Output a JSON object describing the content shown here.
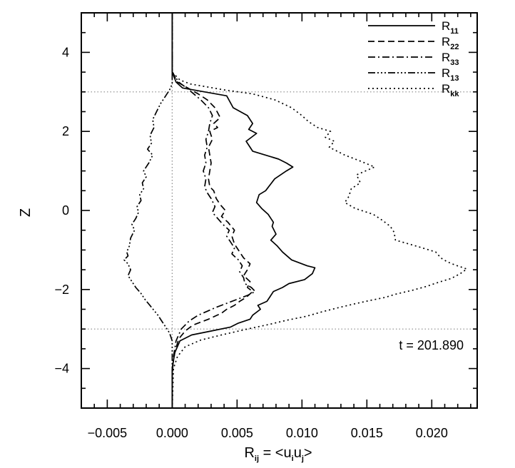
{
  "chart_data": {
    "type": "line",
    "title": "",
    "xlabel": "R_ij = <u_i u_j>",
    "xlabel_parts": {
      "main": "R",
      "sub": "ij",
      "eq": " = <u",
      "sub_i": "i",
      "mid": "u",
      "sub_j": "j",
      "close": ">"
    },
    "ylabel": "Z",
    "xlim": [
      -0.007,
      0.0235
    ],
    "ylim": [
      -5.0,
      5.0
    ],
    "x_ticks": [
      -0.005,
      0.0,
      0.005,
      0.01,
      0.015,
      0.02
    ],
    "x_tick_labels": [
      "−0.005",
      "0.000",
      "0.005",
      "0.010",
      "0.015",
      "0.020"
    ],
    "y_ticks": [
      -4,
      -2,
      0,
      2,
      4
    ],
    "y_tick_labels": [
      "−4",
      "−2",
      "0",
      "2",
      "4"
    ],
    "legend_position": "top-right",
    "grid": false,
    "reference_lines": {
      "horizontal": [
        3.0,
        -3.0
      ],
      "vertical": [
        0.0
      ],
      "style": "dotted",
      "color": "#888888"
    },
    "annotation": "t = 201.890",
    "series": [
      {
        "name": "R11",
        "label_main": "R",
        "label_sub": "11",
        "dash": "",
        "points": [
          [
            0.0,
            5.0
          ],
          [
            0.0,
            4.0
          ],
          [
            0.0,
            3.5
          ],
          [
            0.0003,
            3.25
          ],
          [
            0.0008,
            3.1
          ],
          [
            0.0025,
            3.0
          ],
          [
            0.0042,
            2.9
          ],
          [
            0.0047,
            2.6
          ],
          [
            0.0058,
            2.4
          ],
          [
            0.0062,
            2.2
          ],
          [
            0.0059,
            2.05
          ],
          [
            0.0065,
            1.95
          ],
          [
            0.0057,
            1.75
          ],
          [
            0.0062,
            1.5
          ],
          [
            0.0082,
            1.3
          ],
          [
            0.0088,
            1.2
          ],
          [
            0.0093,
            1.1
          ],
          [
            0.0088,
            1.0
          ],
          [
            0.0079,
            0.8
          ],
          [
            0.0072,
            0.5
          ],
          [
            0.0067,
            0.4
          ],
          [
            0.0065,
            0.2
          ],
          [
            0.0069,
            0.05
          ],
          [
            0.0074,
            -0.1
          ],
          [
            0.0078,
            -0.3
          ],
          [
            0.0077,
            -0.4
          ],
          [
            0.008,
            -0.6
          ],
          [
            0.0076,
            -0.75
          ],
          [
            0.0081,
            -0.9
          ],
          [
            0.0085,
            -1.05
          ],
          [
            0.0092,
            -1.25
          ],
          [
            0.0104,
            -1.4
          ],
          [
            0.011,
            -1.45
          ],
          [
            0.0108,
            -1.6
          ],
          [
            0.0102,
            -1.75
          ],
          [
            0.009,
            -1.85
          ],
          [
            0.0085,
            -1.95
          ],
          [
            0.0078,
            -2.05
          ],
          [
            0.0075,
            -2.2
          ],
          [
            0.0073,
            -2.3
          ],
          [
            0.0066,
            -2.4
          ],
          [
            0.0068,
            -2.5
          ],
          [
            0.0062,
            -2.65
          ],
          [
            0.006,
            -2.75
          ],
          [
            0.0051,
            -2.85
          ],
          [
            0.0045,
            -2.95
          ],
          [
            0.003,
            -3.05
          ],
          [
            0.0015,
            -3.15
          ],
          [
            0.0006,
            -3.3
          ],
          [
            0.0002,
            -3.6
          ],
          [
            0.0,
            -4.0
          ],
          [
            0.0,
            -5.0
          ]
        ]
      },
      {
        "name": "R22",
        "label_main": "R",
        "label_sub": "22",
        "dash": "9,5",
        "points": [
          [
            0.0,
            5.0
          ],
          [
            0.0,
            4.0
          ],
          [
            0.0,
            3.5
          ],
          [
            0.0004,
            3.25
          ],
          [
            0.0012,
            3.1
          ],
          [
            0.002,
            2.95
          ],
          [
            0.0027,
            2.8
          ],
          [
            0.0033,
            2.6
          ],
          [
            0.0037,
            2.35
          ],
          [
            0.0032,
            2.2
          ],
          [
            0.0035,
            2.1
          ],
          [
            0.0029,
            2.0
          ],
          [
            0.0031,
            1.8
          ],
          [
            0.0028,
            1.6
          ],
          [
            0.0029,
            1.4
          ],
          [
            0.003,
            1.2
          ],
          [
            0.0029,
            1.0
          ],
          [
            0.0028,
            0.8
          ],
          [
            0.0029,
            0.6
          ],
          [
            0.0032,
            0.5
          ],
          [
            0.0034,
            0.3
          ],
          [
            0.0037,
            0.15
          ],
          [
            0.0041,
            0.0
          ],
          [
            0.0038,
            -0.15
          ],
          [
            0.0043,
            -0.3
          ],
          [
            0.0048,
            -0.5
          ],
          [
            0.0046,
            -0.65
          ],
          [
            0.0048,
            -0.85
          ],
          [
            0.0052,
            -1.05
          ],
          [
            0.0055,
            -1.2
          ],
          [
            0.006,
            -1.35
          ],
          [
            0.0058,
            -1.5
          ],
          [
            0.0055,
            -1.65
          ],
          [
            0.006,
            -1.8
          ],
          [
            0.0058,
            -1.95
          ],
          [
            0.0062,
            -2.05
          ],
          [
            0.0057,
            -2.2
          ],
          [
            0.0052,
            -2.3
          ],
          [
            0.0048,
            -2.4
          ],
          [
            0.0042,
            -2.5
          ],
          [
            0.0038,
            -2.6
          ],
          [
            0.0028,
            -2.75
          ],
          [
            0.0016,
            -2.9
          ],
          [
            0.001,
            -3.05
          ],
          [
            0.0005,
            -3.25
          ],
          [
            0.0002,
            -3.6
          ],
          [
            0.0,
            -4.0
          ],
          [
            0.0,
            -5.0
          ]
        ]
      },
      {
        "name": "R33",
        "label_main": "R",
        "label_sub": "33",
        "dash": "10,4,2,4",
        "points": [
          [
            0.0,
            5.0
          ],
          [
            0.0,
            4.0
          ],
          [
            0.0,
            3.5
          ],
          [
            0.0005,
            3.25
          ],
          [
            0.0013,
            3.05
          ],
          [
            0.0022,
            2.8
          ],
          [
            0.0028,
            2.6
          ],
          [
            0.0031,
            2.4
          ],
          [
            0.0029,
            2.2
          ],
          [
            0.0028,
            2.0
          ],
          [
            0.0026,
            1.8
          ],
          [
            0.0027,
            1.6
          ],
          [
            0.0025,
            1.4
          ],
          [
            0.0026,
            1.2
          ],
          [
            0.0024,
            1.0
          ],
          [
            0.0026,
            0.8
          ],
          [
            0.0025,
            0.6
          ],
          [
            0.0027,
            0.45
          ],
          [
            0.003,
            0.3
          ],
          [
            0.0033,
            0.1
          ],
          [
            0.0031,
            -0.05
          ],
          [
            0.0035,
            -0.2
          ],
          [
            0.0039,
            -0.35
          ],
          [
            0.0044,
            -0.5
          ],
          [
            0.0042,
            -0.65
          ],
          [
            0.0045,
            -0.8
          ],
          [
            0.0048,
            -0.95
          ],
          [
            0.0046,
            -1.1
          ],
          [
            0.0051,
            -1.25
          ],
          [
            0.0054,
            -1.4
          ],
          [
            0.0052,
            -1.55
          ],
          [
            0.0055,
            -1.7
          ],
          [
            0.0056,
            -1.85
          ],
          [
            0.0061,
            -1.95
          ],
          [
            0.0064,
            -2.05
          ],
          [
            0.0058,
            -2.15
          ],
          [
            0.005,
            -2.25
          ],
          [
            0.0042,
            -2.35
          ],
          [
            0.0034,
            -2.45
          ],
          [
            0.0027,
            -2.55
          ],
          [
            0.002,
            -2.65
          ],
          [
            0.0013,
            -2.8
          ],
          [
            0.0007,
            -3.0
          ],
          [
            0.0003,
            -3.3
          ],
          [
            0.0001,
            -3.7
          ],
          [
            0.0,
            -4.2
          ],
          [
            0.0,
            -5.0
          ]
        ]
      },
      {
        "name": "R13",
        "label_main": "R",
        "label_sub": "13",
        "dash": "10,3,2,3,2,3,2,3",
        "points": [
          [
            0.0,
            5.0
          ],
          [
            0.0,
            4.0
          ],
          [
            0.0,
            3.4
          ],
          [
            0.0,
            3.2
          ],
          [
            -0.0002,
            3.05
          ],
          [
            -0.0005,
            2.9
          ],
          [
            -0.0009,
            2.7
          ],
          [
            -0.0012,
            2.5
          ],
          [
            -0.0015,
            2.3
          ],
          [
            -0.0014,
            2.1
          ],
          [
            -0.0017,
            1.9
          ],
          [
            -0.0016,
            1.7
          ],
          [
            -0.0019,
            1.55
          ],
          [
            -0.0015,
            1.4
          ],
          [
            -0.0018,
            1.2
          ],
          [
            -0.0022,
            1.0
          ],
          [
            -0.002,
            0.85
          ],
          [
            -0.0023,
            0.7
          ],
          [
            -0.0022,
            0.55
          ],
          [
            -0.0025,
            0.4
          ],
          [
            -0.0024,
            0.25
          ],
          [
            -0.0027,
            0.1
          ],
          [
            -0.0026,
            -0.05
          ],
          [
            -0.0028,
            -0.2
          ],
          [
            -0.0031,
            -0.35
          ],
          [
            -0.0029,
            -0.5
          ],
          [
            -0.0032,
            -0.7
          ],
          [
            -0.0033,
            -0.9
          ],
          [
            -0.0035,
            -1.05
          ],
          [
            -0.0034,
            -1.15
          ],
          [
            -0.0037,
            -1.25
          ],
          [
            -0.0034,
            -1.35
          ],
          [
            -0.0032,
            -1.5
          ],
          [
            -0.0034,
            -1.65
          ],
          [
            -0.0031,
            -1.8
          ],
          [
            -0.0028,
            -1.95
          ],
          [
            -0.0024,
            -2.1
          ],
          [
            -0.0021,
            -2.25
          ],
          [
            -0.0016,
            -2.45
          ],
          [
            -0.0011,
            -2.65
          ],
          [
            -0.0008,
            -2.8
          ],
          [
            -0.0005,
            -2.95
          ],
          [
            -0.0002,
            -3.1
          ],
          [
            0.0,
            -3.3
          ],
          [
            0.0,
            -5.0
          ]
        ]
      },
      {
        "name": "Rkk",
        "label_main": "R",
        "label_sub": "kk",
        "dash": "2,4",
        "points": [
          [
            0.0,
            5.0
          ],
          [
            0.0,
            4.0
          ],
          [
            0.0,
            3.5
          ],
          [
            0.0006,
            3.3
          ],
          [
            0.0014,
            3.2
          ],
          [
            0.004,
            3.05
          ],
          [
            0.0062,
            2.95
          ],
          [
            0.0079,
            2.8
          ],
          [
            0.0092,
            2.6
          ],
          [
            0.01,
            2.4
          ],
          [
            0.0105,
            2.25
          ],
          [
            0.0112,
            2.1
          ],
          [
            0.0122,
            2.0
          ],
          [
            0.0118,
            1.85
          ],
          [
            0.0125,
            1.75
          ],
          [
            0.0121,
            1.6
          ],
          [
            0.0133,
            1.4
          ],
          [
            0.0145,
            1.25
          ],
          [
            0.0156,
            1.1
          ],
          [
            0.0142,
            0.9
          ],
          [
            0.0145,
            0.7
          ],
          [
            0.0138,
            0.55
          ],
          [
            0.0136,
            0.35
          ],
          [
            0.0133,
            0.2
          ],
          [
            0.0141,
            0.05
          ],
          [
            0.0155,
            -0.1
          ],
          [
            0.0162,
            -0.25
          ],
          [
            0.0168,
            -0.4
          ],
          [
            0.0171,
            -0.55
          ],
          [
            0.0172,
            -0.75
          ],
          [
            0.0188,
            -0.9
          ],
          [
            0.0203,
            -1.05
          ],
          [
            0.0207,
            -1.2
          ],
          [
            0.0212,
            -1.3
          ],
          [
            0.0218,
            -1.38
          ],
          [
            0.0227,
            -1.48
          ],
          [
            0.0222,
            -1.6
          ],
          [
            0.0215,
            -1.72
          ],
          [
            0.0205,
            -1.82
          ],
          [
            0.0196,
            -1.92
          ],
          [
            0.0185,
            -2.02
          ],
          [
            0.0172,
            -2.12
          ],
          [
            0.0164,
            -2.2
          ],
          [
            0.0152,
            -2.28
          ],
          [
            0.0141,
            -2.36
          ],
          [
            0.0128,
            -2.46
          ],
          [
            0.0116,
            -2.56
          ],
          [
            0.0103,
            -2.68
          ],
          [
            0.0088,
            -2.78
          ],
          [
            0.0075,
            -2.88
          ],
          [
            0.0058,
            -3.0
          ],
          [
            0.0038,
            -3.15
          ],
          [
            0.0022,
            -3.28
          ],
          [
            0.001,
            -3.45
          ],
          [
            0.0004,
            -3.7
          ],
          [
            0.0001,
            -4.0
          ],
          [
            0.0,
            -5.0
          ]
        ]
      }
    ]
  }
}
